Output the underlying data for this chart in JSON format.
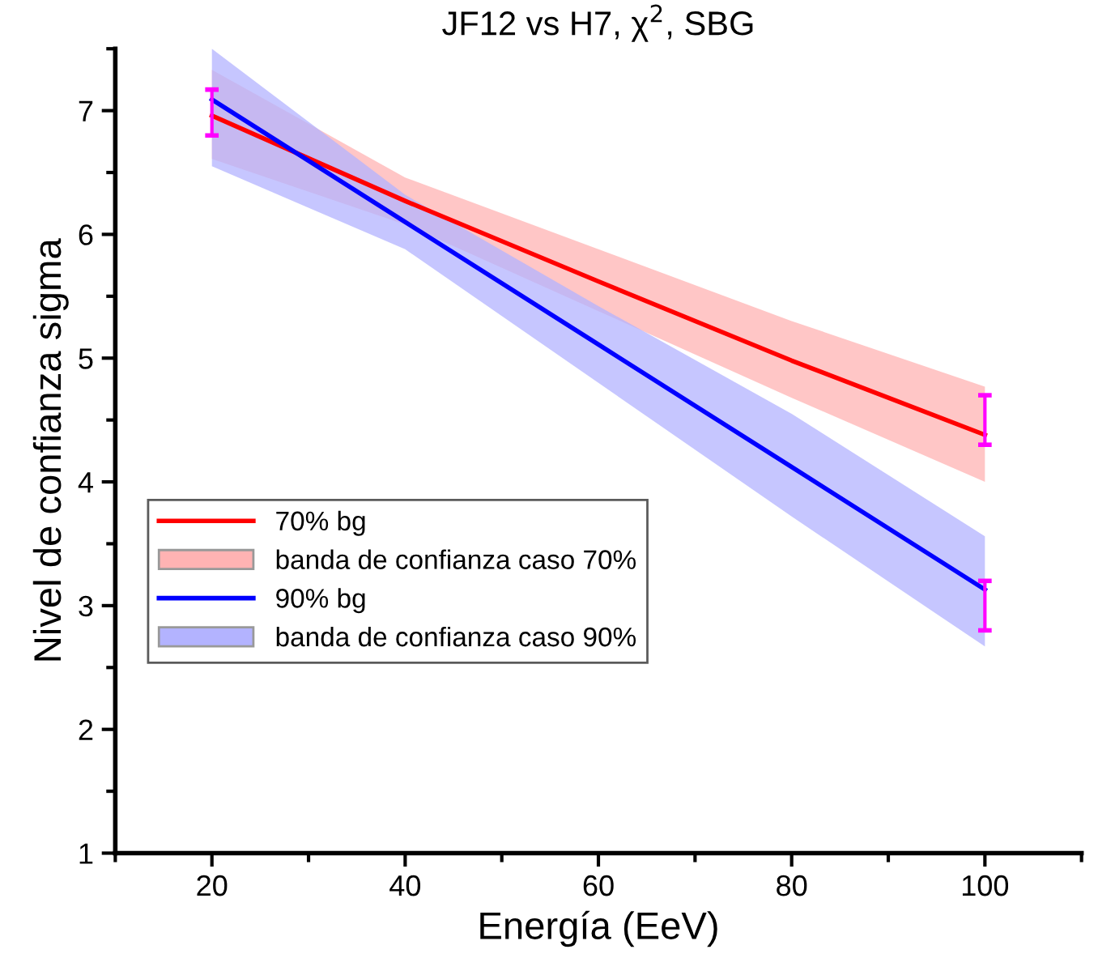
{
  "chart_data": {
    "type": "line",
    "title": "JF12 vs H7, χ$^{2}$, SBG",
    "xlabel": "Energía (EeV)",
    "ylabel": "Nivel de confianza sigma",
    "x": [
      20,
      40,
      60,
      80,
      100
    ],
    "series": [
      {
        "name": "70% bg",
        "color": "#ff0000",
        "values": [
          6.96,
          6.27,
          5.62,
          4.98,
          4.38
        ],
        "errors": [
          [
            6.8,
            7.17
          ],
          null,
          null,
          null,
          [
            4.3,
            4.7
          ]
        ]
      },
      {
        "type": "area",
        "name": "banda de confianza caso 70%",
        "color": "#ffb3b3",
        "values": [
          null,
          null,
          null,
          null,
          null
        ],
        "lower": [
          6.61,
          6.08,
          5.38,
          4.68,
          4.0
        ],
        "upper": [
          7.33,
          6.46,
          5.88,
          5.3,
          4.77
        ]
      },
      {
        "name": "90% bg",
        "color": "#0000ff",
        "values": [
          7.09,
          6.1,
          5.11,
          4.12,
          3.13
        ],
        "errors": [
          null,
          null,
          null,
          null,
          [
            2.8,
            3.2
          ]
        ]
      },
      {
        "type": "area",
        "name": "banda de confianza caso 90%",
        "color": "#b3b3ff",
        "values": [
          null,
          null,
          null,
          null,
          null
        ],
        "lower": [
          6.55,
          5.88,
          4.8,
          3.72,
          2.67
        ],
        "upper": [
          7.5,
          6.32,
          5.42,
          4.55,
          3.56
        ]
      }
    ],
    "xlim": [
      10,
      110
    ],
    "ylim": [
      1,
      7.5
    ],
    "xticks": [
      20,
      40,
      60,
      80,
      100
    ],
    "yticks": [
      1,
      2,
      3,
      4,
      5,
      6,
      7
    ],
    "grid": false,
    "legend": "bottom left",
    "marker": "none",
    "line_style": "solid"
  }
}
